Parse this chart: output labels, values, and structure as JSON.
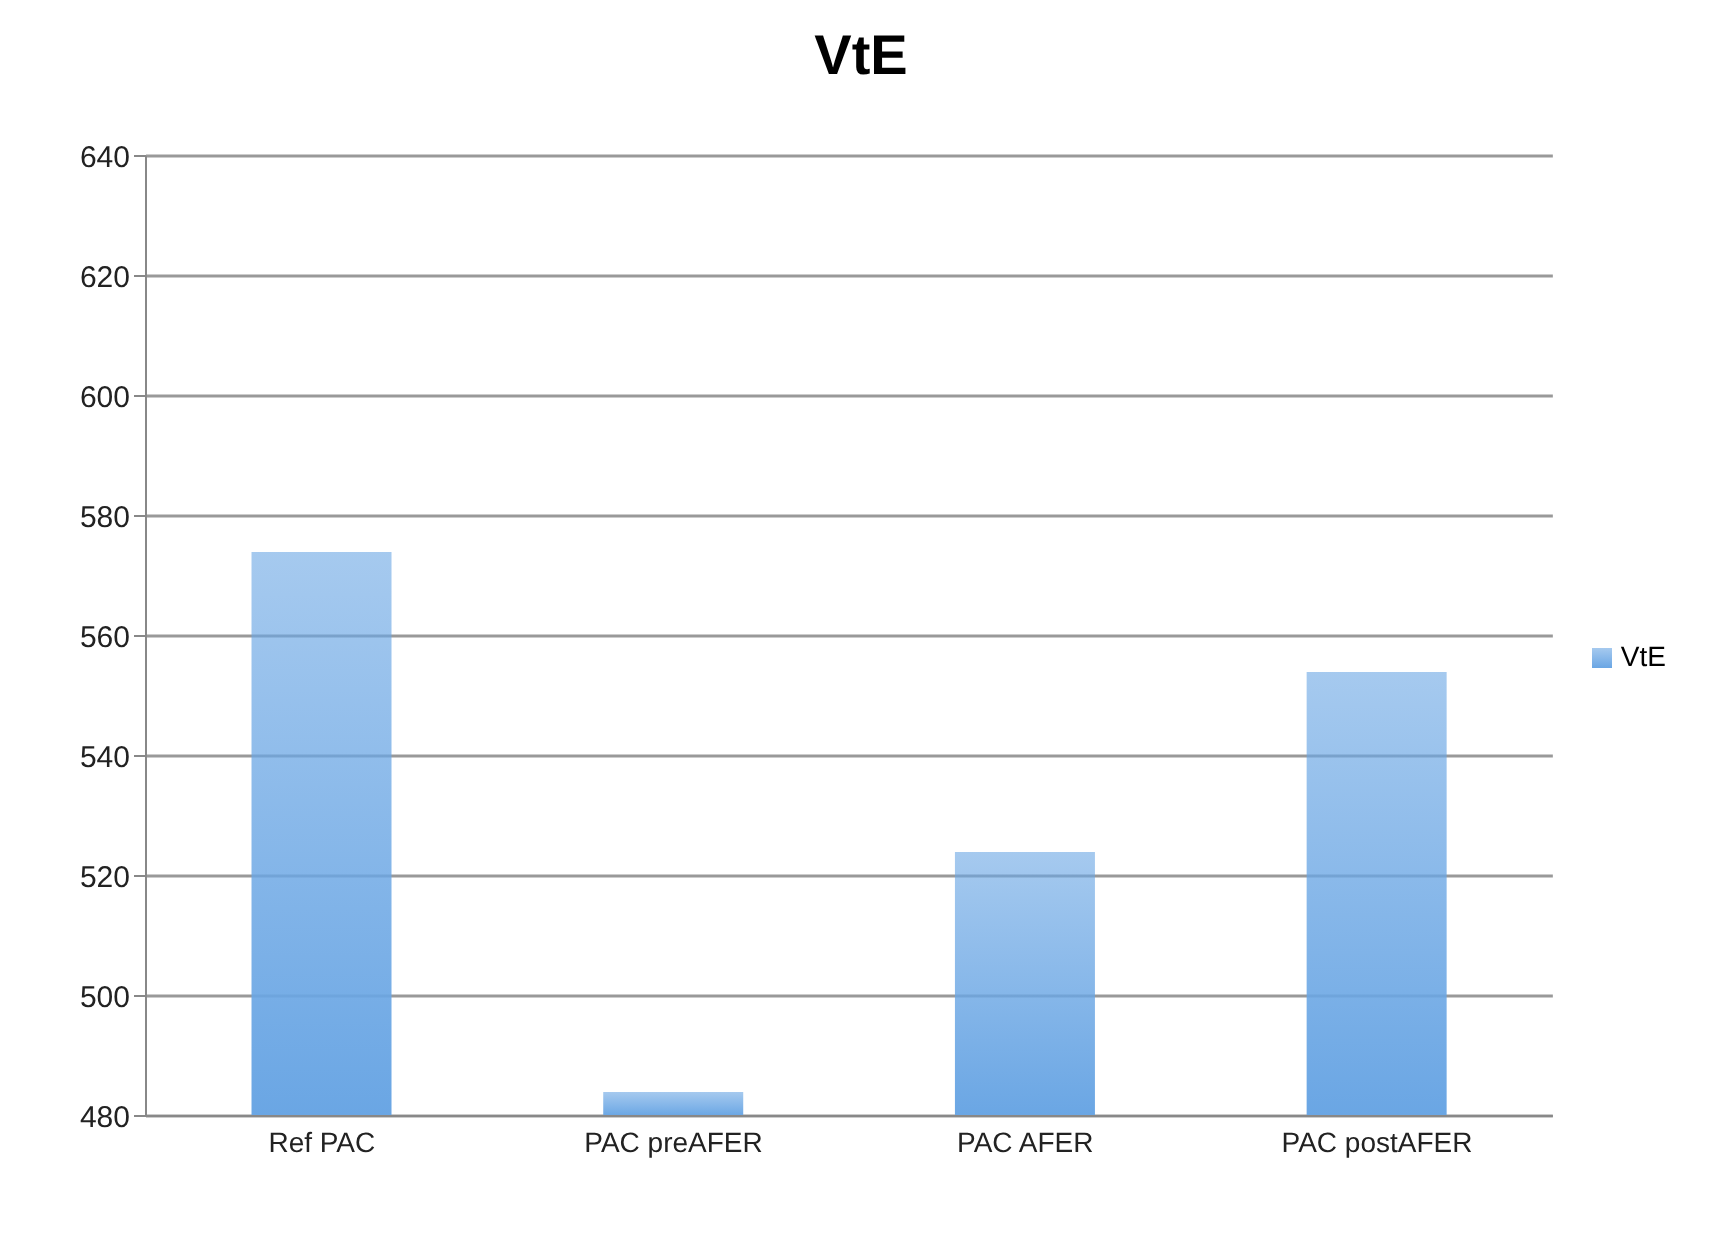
{
  "chart_data": {
    "type": "bar",
    "title": "VtE",
    "categories": [
      "Ref PAC",
      "PAC preAFER",
      "PAC AFER",
      "PAC postAFER"
    ],
    "series": [
      {
        "name": "VtE",
        "color": "#6aa6e4",
        "values": [
          574,
          484,
          524,
          554
        ]
      }
    ],
    "ylim": [
      480,
      640
    ],
    "yticks": [
      480,
      500,
      520,
      540,
      560,
      580,
      600,
      620,
      640
    ],
    "grid": "y",
    "legend": "right"
  }
}
